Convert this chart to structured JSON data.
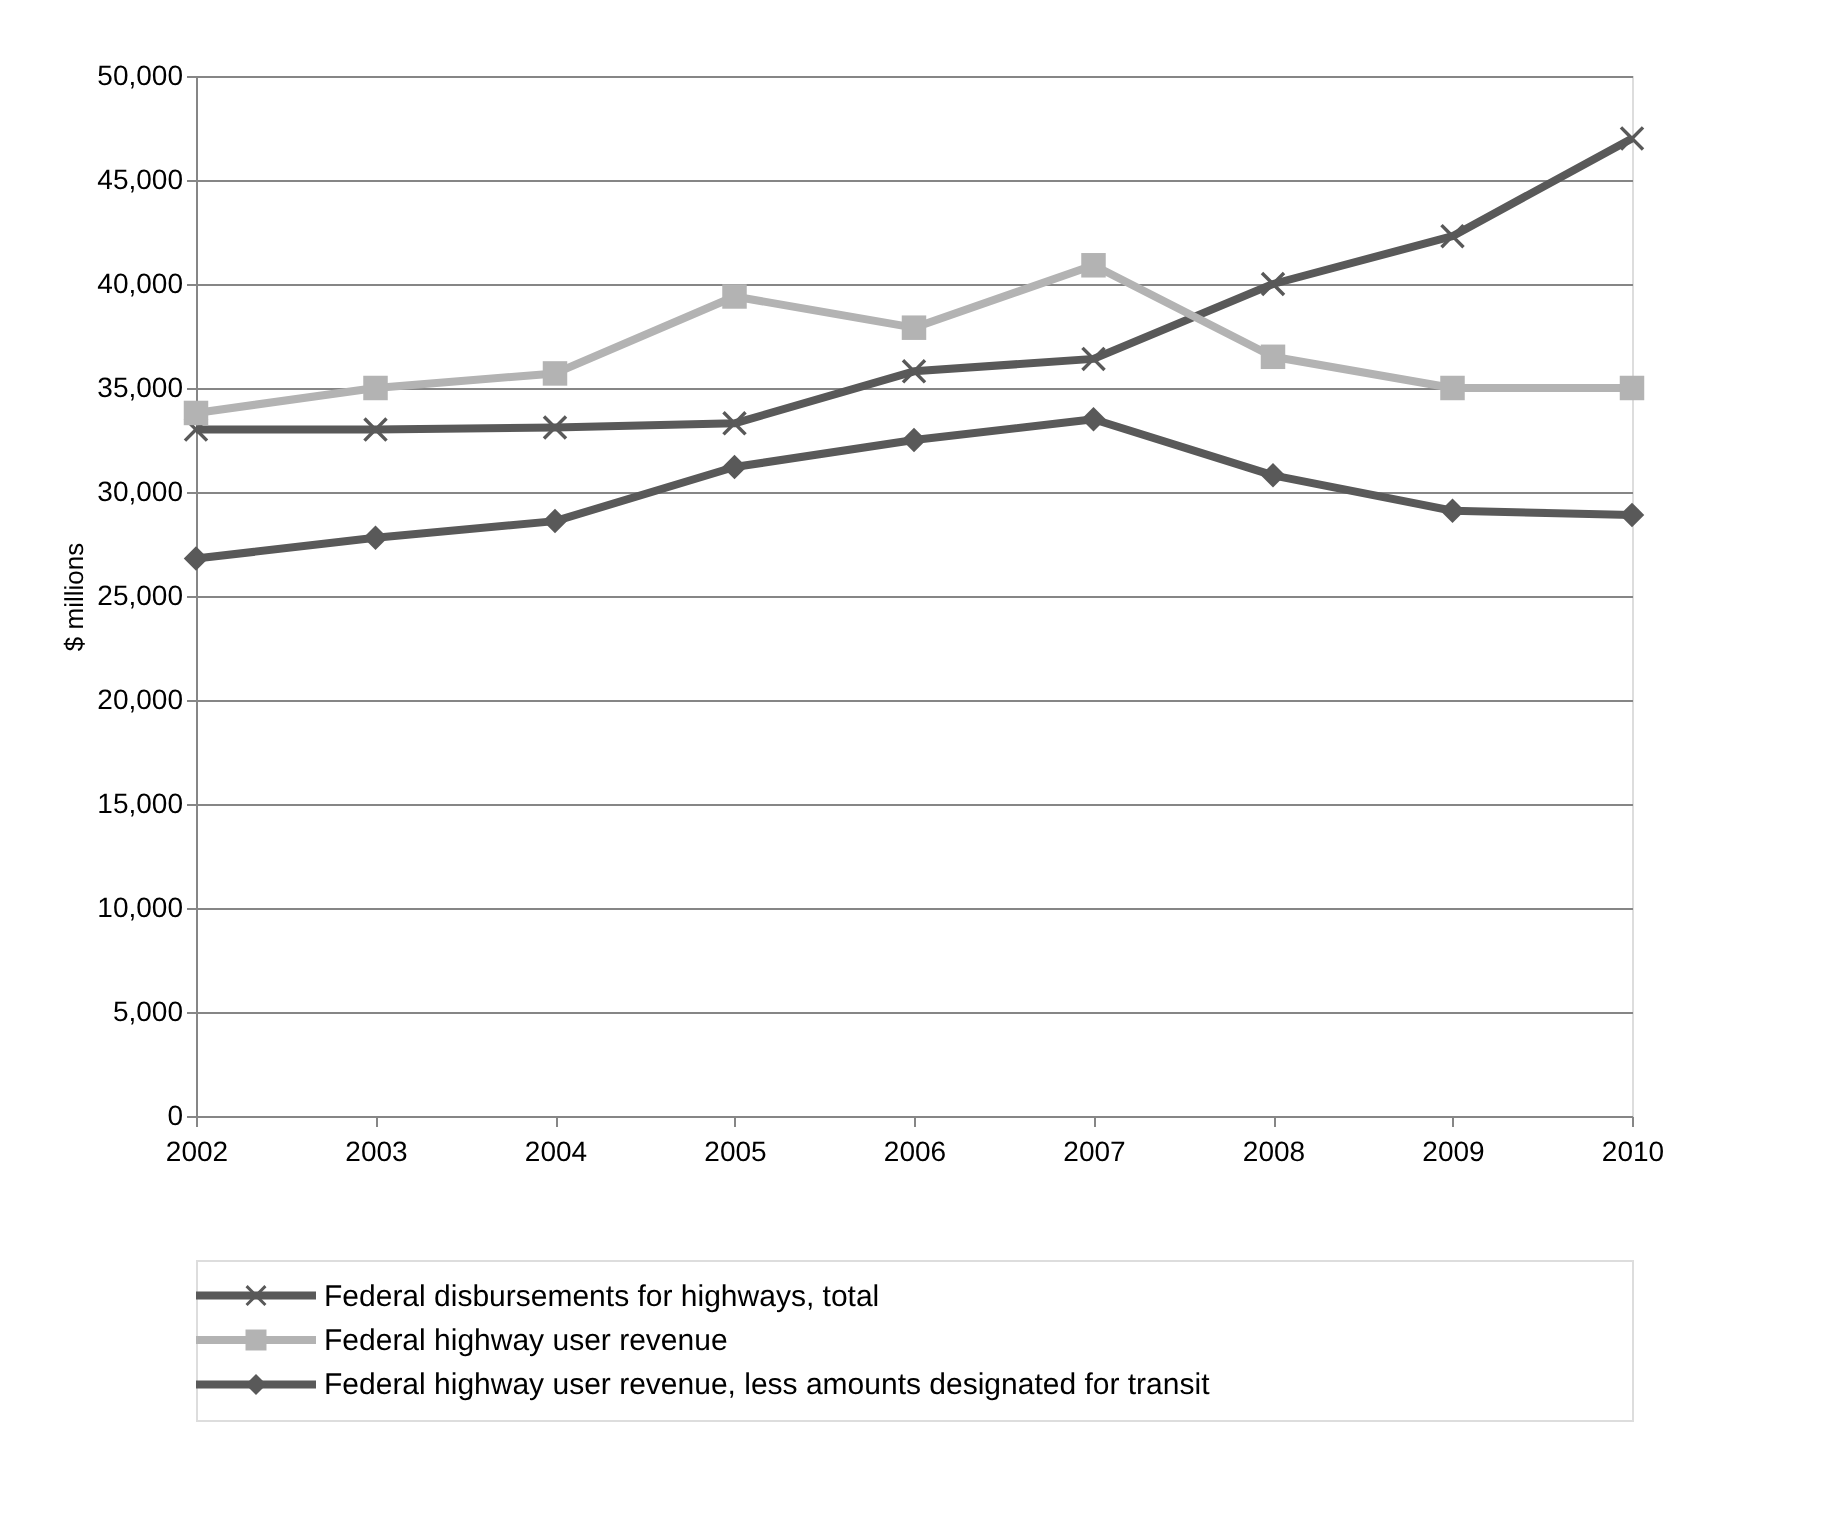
{
  "chart_data": {
    "type": "line",
    "ylabel": "$ millions",
    "x": [
      2002,
      2003,
      2004,
      2005,
      2006,
      2007,
      2008,
      2009,
      2010
    ],
    "series": [
      {
        "name": "Federal disbursements for highways,  total",
        "color": "#595959",
        "marker": "cross",
        "values": [
          33000,
          33000,
          33100,
          33300,
          35800,
          36400,
          40000,
          42300,
          47000
        ]
      },
      {
        "name": "Federal highway user revenue",
        "color": "#b3b3b3",
        "marker": "square",
        "values": [
          33800,
          35000,
          35700,
          39400,
          37900,
          40900,
          36500,
          35000,
          35000
        ]
      },
      {
        "name": "Federal highway user revenue, less amounts designated for transit",
        "color": "#595959",
        "marker": "diamond",
        "values": [
          26800,
          27800,
          28600,
          31200,
          32500,
          33500,
          30800,
          29100,
          28900
        ]
      }
    ],
    "xlim": [
      2002,
      2010
    ],
    "xticks": [
      2002,
      2003,
      2004,
      2005,
      2006,
      2007,
      2008,
      2009,
      2010
    ],
    "ylim": [
      0,
      50000
    ],
    "yticks": [
      0,
      {
        "value": 5000,
        "label": "5,000"
      },
      {
        "value": 10000,
        "label": "10,000"
      },
      {
        "value": 15000,
        "label": "15,000"
      },
      {
        "value": 20000,
        "label": "20,000"
      },
      {
        "value": 25000,
        "label": "25,000"
      },
      {
        "value": 30000,
        "label": "30,000"
      },
      {
        "value": 35000,
        "label": "35,000"
      },
      {
        "value": 40000,
        "label": "40,000"
      },
      {
        "value": 45000,
        "label": "45,000"
      },
      {
        "value": 50000,
        "label": "50,000"
      }
    ],
    "grid": "y",
    "legend": "bottom",
    "line_style": "solid"
  }
}
